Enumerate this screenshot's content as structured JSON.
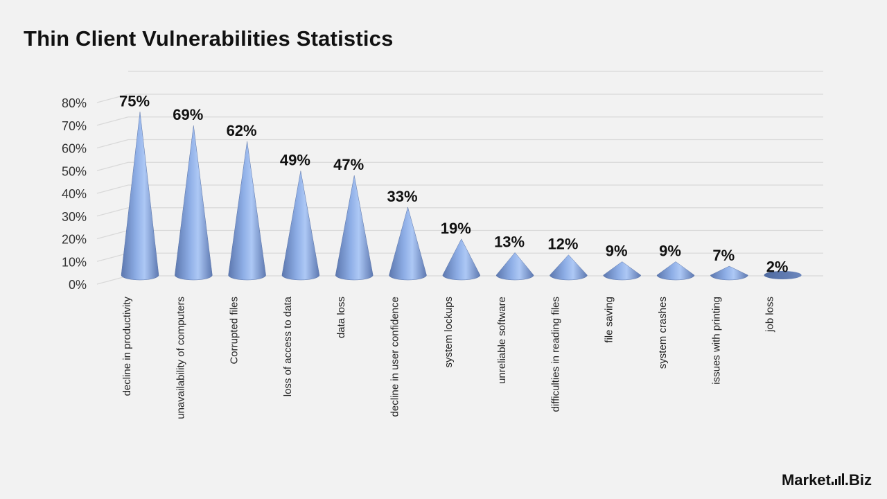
{
  "title": "Thin Client Vulnerabilities Statistics",
  "logo": {
    "part1": "Market",
    "part2": ".Biz"
  },
  "chart_data": {
    "type": "bar",
    "shape": "cone",
    "title": "Thin Client Vulnerabilities Statistics",
    "categories": [
      "decline in productivity",
      "unavailability of computers",
      "Corrupted files",
      "loss of access to data",
      "data loss",
      "decline in user confidence",
      "system lockups",
      "unreliable software",
      "difficulties in reading files",
      "file saving",
      "system crashes",
      "issues with printing",
      "job loss"
    ],
    "values": [
      75,
      69,
      62,
      49,
      47,
      33,
      19,
      13,
      12,
      9,
      9,
      7,
      2
    ],
    "data_labels": [
      "75%",
      "69%",
      "62%",
      "49%",
      "47%",
      "33%",
      "19%",
      "13%",
      "12%",
      "9%",
      "9%",
      "7%",
      "2%"
    ],
    "yticks": [
      "0%",
      "10%",
      "20%",
      "30%",
      "40%",
      "50%",
      "60%",
      "70%",
      "80%"
    ],
    "ylim": [
      0,
      80
    ],
    "xlabel": "",
    "ylabel": "",
    "grid": true,
    "legend": "none",
    "colors": {
      "cone_dark": "#5e79b1",
      "cone_light": "#a9c4f2",
      "grid": "#d9d9d9"
    }
  }
}
